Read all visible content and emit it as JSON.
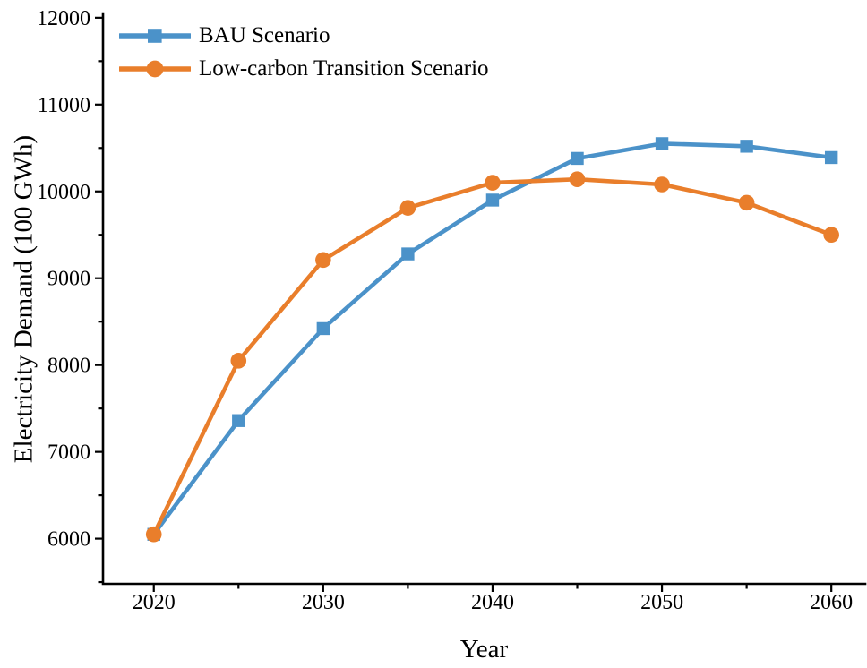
{
  "figure": {
    "background": "#ffffff",
    "text_color": "#000000"
  },
  "chart_data": {
    "type": "line",
    "title": "",
    "xlabel": "Year",
    "ylabel": "Electricity Demand (100 GWh)",
    "x": [
      2020,
      2025,
      2030,
      2035,
      2040,
      2045,
      2050,
      2055,
      2060
    ],
    "series": [
      {
        "name": "BAU Scenario",
        "marker": "square",
        "color": "#4B92C9",
        "values": [
          6050,
          7360,
          8420,
          9280,
          9900,
          10380,
          10550,
          10520,
          10390
        ]
      },
      {
        "name": "Low-carbon Transition Scenario",
        "marker": "circle",
        "color": "#E97E2B",
        "values": [
          6050,
          8050,
          9210,
          9810,
          10100,
          10140,
          10080,
          9870,
          9500
        ]
      }
    ],
    "xlim": [
      2017,
      2062
    ],
    "ylim": [
      5480,
      12050
    ],
    "x_major_ticks": [
      2020,
      2030,
      2040,
      2050,
      2060
    ],
    "x_minor_ticks": [
      2025,
      2035,
      2045,
      2055
    ],
    "y_major_ticks": [
      6000,
      7000,
      8000,
      9000,
      10000,
      11000,
      12000
    ],
    "y_minor_ticks": [
      5500,
      6500,
      7500,
      8500,
      9500,
      10500,
      11500
    ],
    "grid": false,
    "legend_position": "top-left",
    "axis_color": "#000000"
  }
}
